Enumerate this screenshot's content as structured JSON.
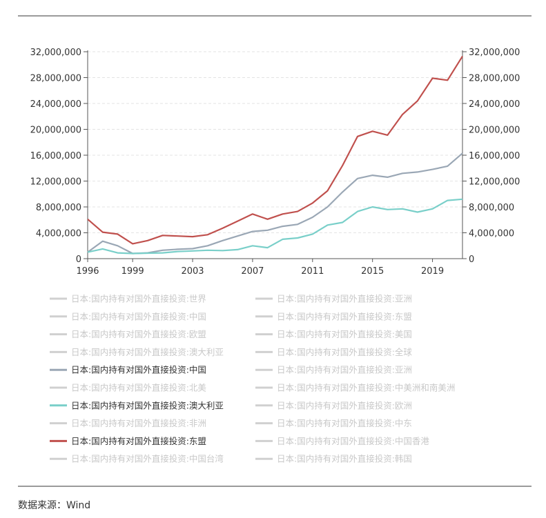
{
  "source": "数据来源：Wind",
  "chart_data": {
    "type": "line",
    "x_ticks": [
      "1996",
      "1999",
      "2003",
      "2007",
      "2011",
      "2015",
      "2019"
    ],
    "xlim": [
      1996,
      2021
    ],
    "ylim": [
      0,
      32000000
    ],
    "y_ticks": [
      "0",
      "4,000,000",
      "8,000,000",
      "12,000,000",
      "16,000,000",
      "20,000,000",
      "24,000,000",
      "28,000,000",
      "32,000,000"
    ],
    "y_tick_values": [
      0,
      4000000,
      8000000,
      12000000,
      16000000,
      20000000,
      24000000,
      28000000,
      32000000
    ],
    "grid": true,
    "legend_position": "bottom",
    "x": [
      1996,
      1997,
      1998,
      1999,
      2000,
      2001,
      2002,
      2003,
      2004,
      2005,
      2006,
      2007,
      2008,
      2009,
      2010,
      2011,
      2012,
      2013,
      2014,
      2015,
      2016,
      2017,
      2018,
      2019,
      2020,
      2021
    ],
    "series": [
      {
        "name": "日本:国内持有对国外直接投资:中国",
        "color": "#9aa7b5",
        "values": [
          1000000,
          2700000,
          2000000,
          800000,
          900000,
          1300000,
          1450000,
          1550000,
          2000000,
          2800000,
          3500000,
          4200000,
          4400000,
          5000000,
          5300000,
          6400000,
          8000000,
          10300000,
          12400000,
          12900000,
          12600000,
          13200000,
          13400000,
          13800000,
          14300000,
          16300000
        ]
      },
      {
        "name": "日本:国内持有对国外直接投资:澳大利亚",
        "color": "#79cfc9",
        "values": [
          1000000,
          1500000,
          900000,
          800000,
          850000,
          900000,
          1100000,
          1200000,
          1300000,
          1250000,
          1400000,
          2000000,
          1700000,
          3000000,
          3200000,
          3800000,
          5200000,
          5600000,
          7300000,
          8000000,
          7600000,
          7700000,
          7200000,
          7700000,
          9000000,
          9200000
        ]
      },
      {
        "name": "日本:国内持有对国外直接投资:东盟",
        "color": "#c0504d",
        "values": [
          6100000,
          4100000,
          3800000,
          2300000,
          2800000,
          3600000,
          3500000,
          3400000,
          3700000,
          4700000,
          5800000,
          6900000,
          6100000,
          6900000,
          7300000,
          8600000,
          10500000,
          14400000,
          18900000,
          19700000,
          19100000,
          22300000,
          24400000,
          27900000,
          27600000,
          31300000
        ]
      }
    ],
    "legend": [
      {
        "label": "日本:国内持有对国外直接投资:世界",
        "active": false
      },
      {
        "label": "日本:国内持有对国外直接投资:亚洲",
        "active": false
      },
      {
        "label": "日本:国内持有对国外直接投资:中国",
        "active": false
      },
      {
        "label": "日本:国内持有对国外直接投资:东盟",
        "active": false
      },
      {
        "label": "日本:国内持有对国外直接投资:欧盟",
        "active": false
      },
      {
        "label": "日本:国内持有对国外直接投资:美国",
        "active": false
      },
      {
        "label": "日本:国内持有对国外直接投资:澳大利亚",
        "active": false
      },
      {
        "label": "日本:国内持有对国外直接投资:全球",
        "active": false
      },
      {
        "label": "日本:国内持有对国外直接投资:中国",
        "active": true,
        "color": "#9aa7b5"
      },
      {
        "label": "日本:国内持有对国外直接投资:亚洲",
        "active": false
      },
      {
        "label": "日本:国内持有对国外直接投资:北美",
        "active": false
      },
      {
        "label": "日本:国内持有对国外直接投资:中美洲和南美洲",
        "active": false
      },
      {
        "label": "日本:国内持有对国外直接投资:澳大利亚",
        "active": true,
        "color": "#79cfc9"
      },
      {
        "label": "日本:国内持有对国外直接投资:欧洲",
        "active": false
      },
      {
        "label": "日本:国内持有对国外直接投资:非洲",
        "active": false
      },
      {
        "label": "日本:国内持有对国外直接投资:中东",
        "active": false
      },
      {
        "label": "日本:国内持有对国外直接投资:东盟",
        "active": true,
        "color": "#c0504d"
      },
      {
        "label": "日本:国内持有对国外直接投资:中国香港",
        "active": false
      },
      {
        "label": "日本:国内持有对国外直接投资:中国台湾",
        "active": false
      },
      {
        "label": "日本:国内持有对国外直接投资:韩国",
        "active": false
      }
    ]
  }
}
